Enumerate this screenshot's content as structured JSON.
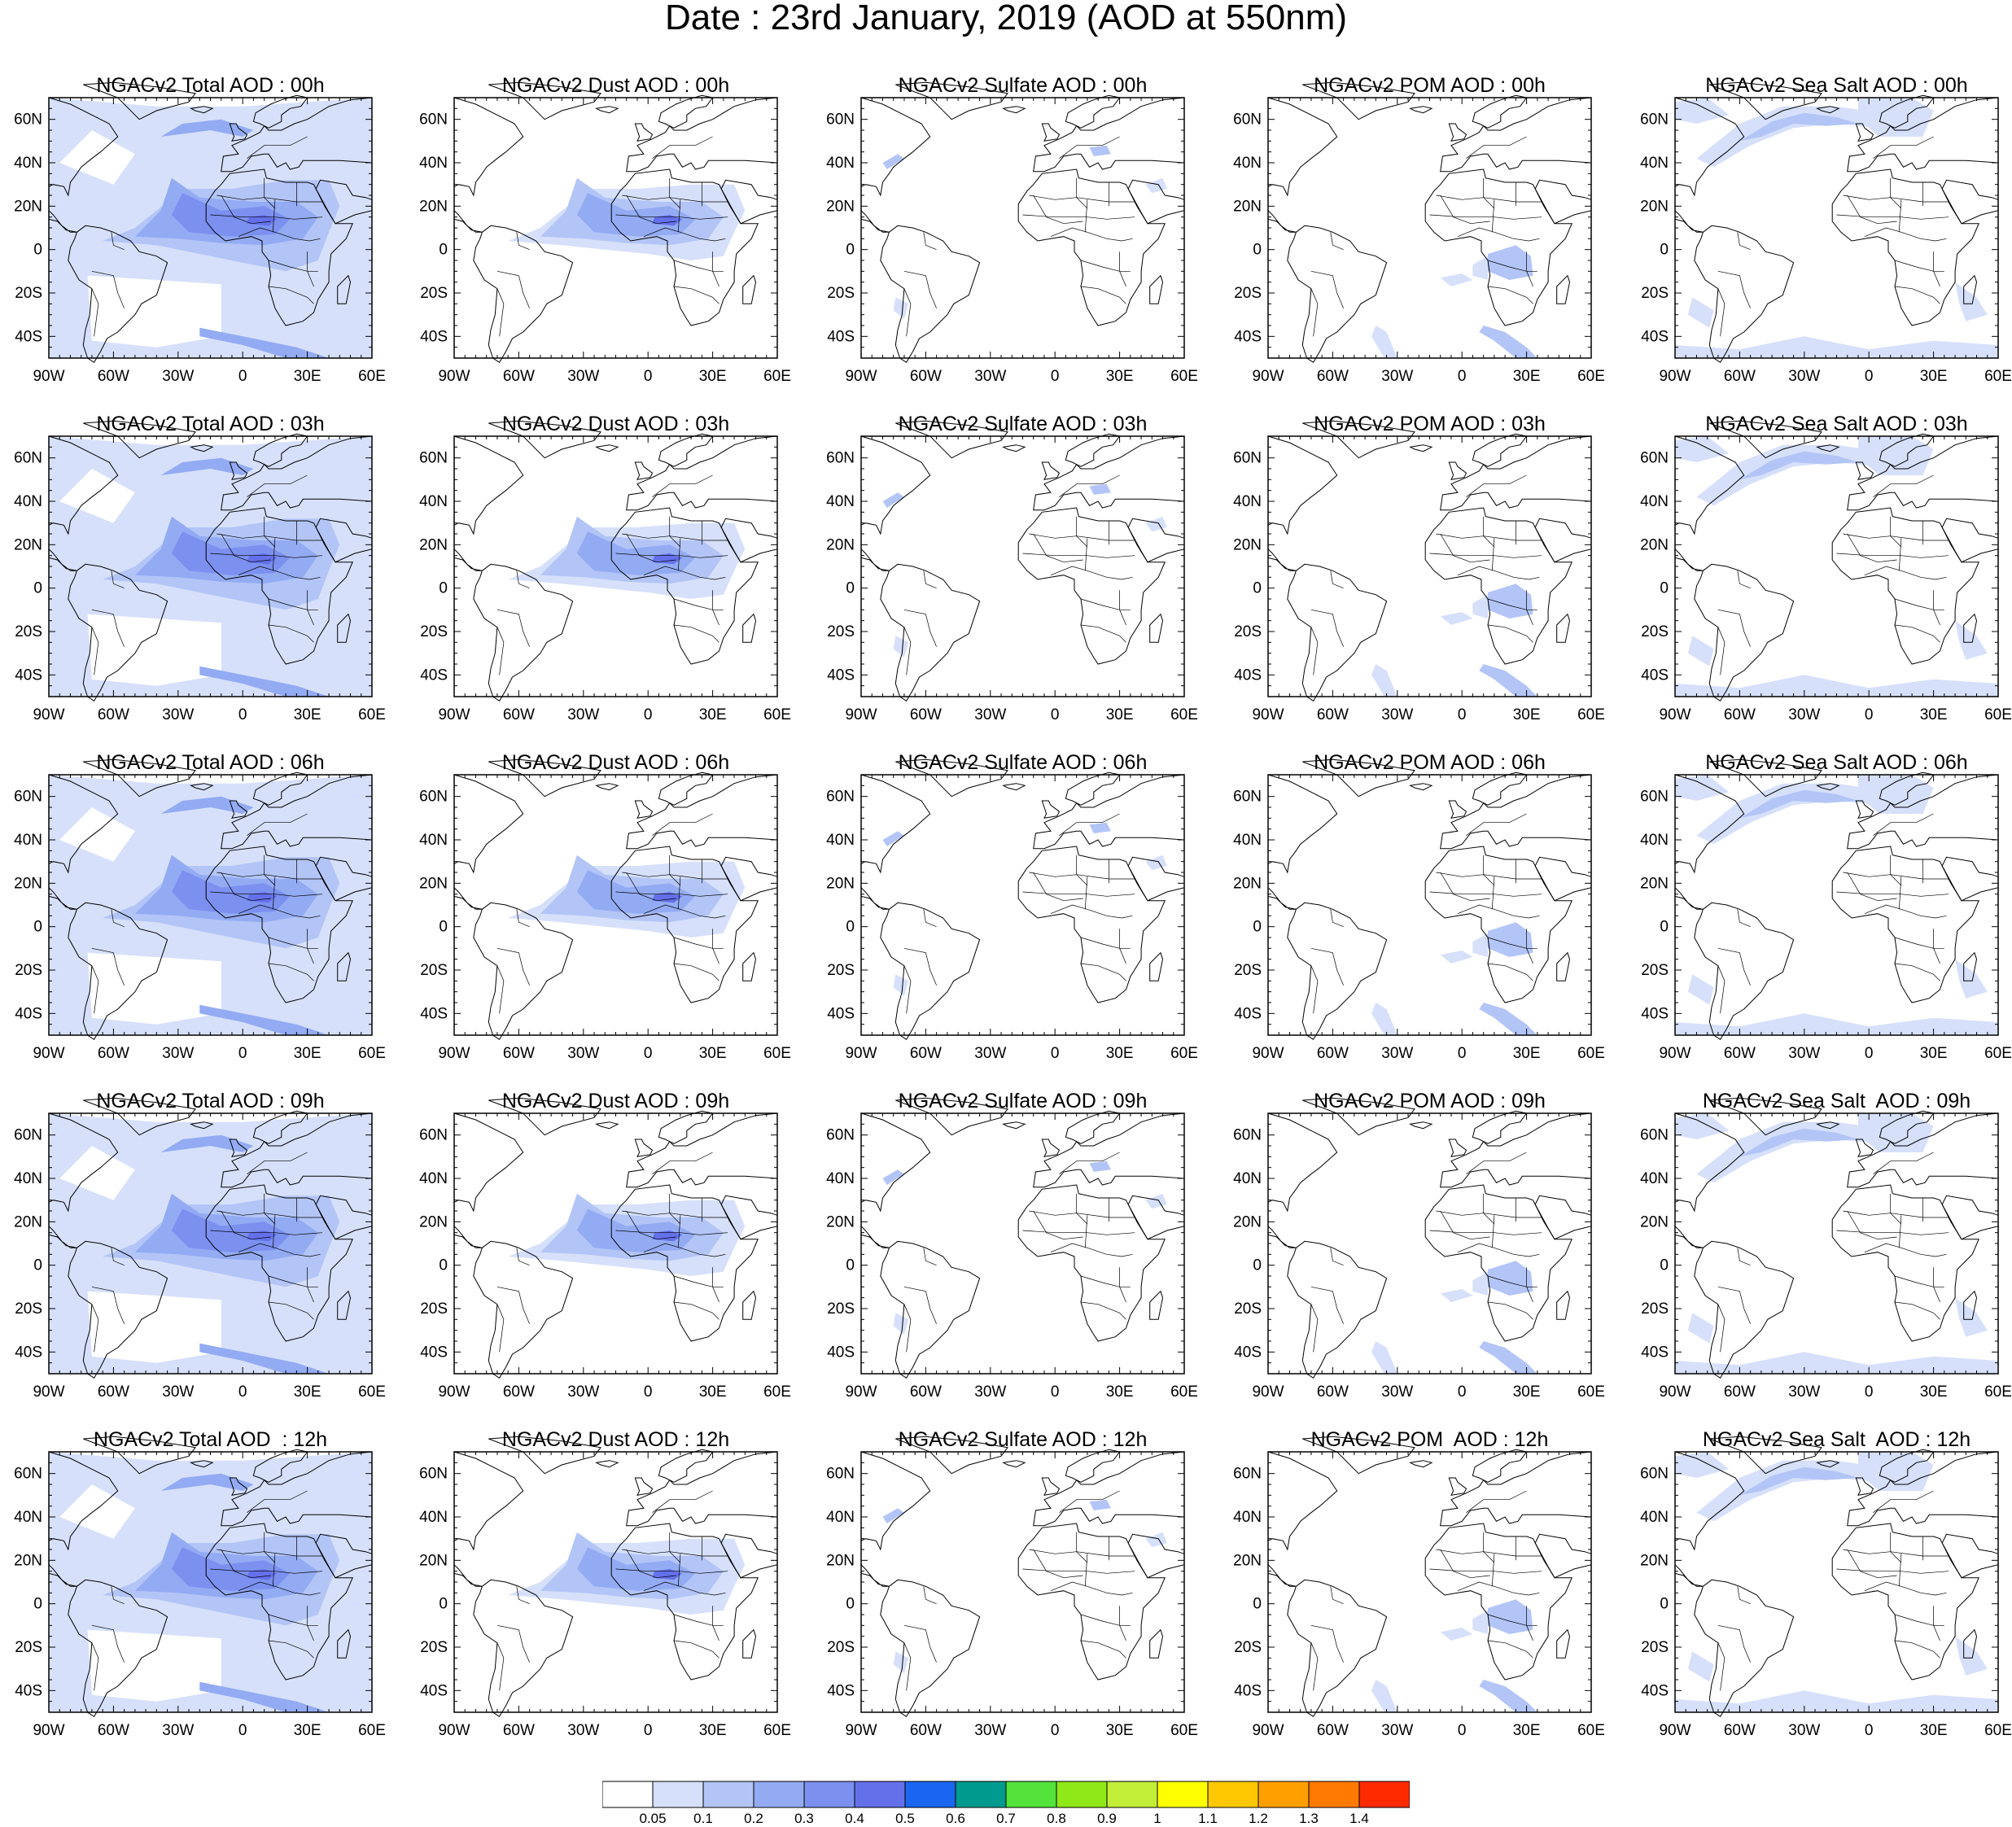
{
  "title": "Date : 23rd January, 2019 (AOD at 550nm)",
  "map_extent": {
    "lon": [
      -90,
      60
    ],
    "lat": [
      -50,
      70
    ]
  },
  "lon_ticks": [
    "90W",
    "60W",
    "30W",
    "0",
    "30E",
    "60E"
  ],
  "lat_ticks": [
    "60N",
    "40N",
    "20N",
    "0",
    "20S",
    "40S"
  ],
  "panel_titles": [
    [
      "NGACv2 Total AOD : 00h",
      "NGACv2 Dust AOD : 00h",
      "NGACv2 Sulfate AOD : 00h",
      "NGACv2 POM AOD : 00h",
      "NGACv2 Sea Salt AOD : 00h"
    ],
    [
      "NGACv2 Total AOD : 03h",
      "NGACv2 Dust AOD : 03h",
      "NGACv2 Sulfate AOD : 03h",
      "NGACv2 POM AOD : 03h",
      "NGACv2 Sea Salt AOD : 03h"
    ],
    [
      "NGACv2 Total AOD : 06h",
      "NGACv2 Dust AOD : 06h",
      "NGACv2 Sulfate AOD : 06h",
      "NGACv2 POM AOD : 06h",
      "NGACv2 Sea Salt AOD : 06h"
    ],
    [
      "NGACv2 Total AOD : 09h",
      "NGACv2 Dust AOD : 09h",
      "NGACv2 Sulfate AOD : 09h",
      "NGACv2 POM AOD : 09h",
      "NGACv2 Sea Salt  AOD : 09h"
    ],
    [
      "NGACv2 Total AOD  : 12h",
      "NGACv2 Dust AOD : 12h",
      "NGACv2 Sulfate AOD : 12h",
      "NGACv2 POM  AOD : 12h",
      "NGACv2 Sea Salt  AOD : 12h"
    ]
  ],
  "colorbar": {
    "colors": [
      "#ffffff",
      "#d6e0fa",
      "#b3c5f7",
      "#93abf3",
      "#7b90ef",
      "#6470ea",
      "#1a66f0",
      "#009b8f",
      "#54e33a",
      "#8fe818",
      "#c2ee38",
      "#ffff00",
      "#ffc800",
      "#ffa000",
      "#ff7a00",
      "#ff2a00"
    ],
    "labels": [
      "0.05",
      "0.1",
      "0.2",
      "0.3",
      "0.4",
      "0.5",
      "0.6",
      "0.7",
      "0.8",
      "0.9",
      "1",
      "1.1",
      "1.2",
      "1.3",
      "1.4"
    ]
  }
}
